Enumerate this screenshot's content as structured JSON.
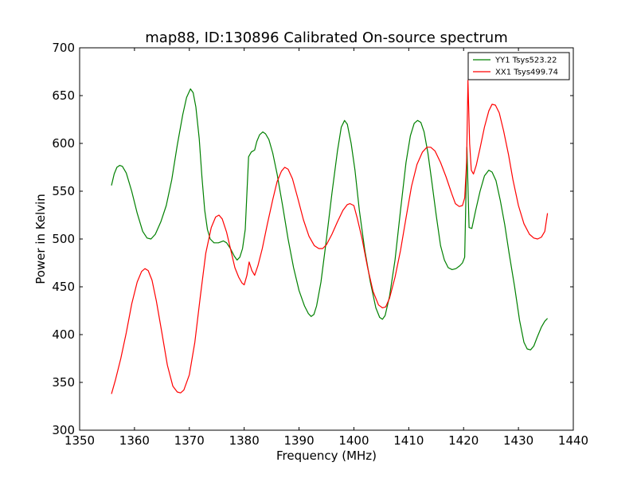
{
  "chart_data": {
    "type": "line",
    "title": "map88, ID:130896 Calibrated On-source spectrum",
    "xlabel": "Frequency (MHz)",
    "ylabel": "Power in Kelvin",
    "xlim": [
      1350,
      1440
    ],
    "ylim": [
      300,
      700
    ],
    "xticks": [
      1350,
      1360,
      1370,
      1380,
      1390,
      1400,
      1410,
      1420,
      1430,
      1440
    ],
    "yticks": [
      300,
      350,
      400,
      450,
      500,
      550,
      600,
      650,
      700
    ],
    "grid": false,
    "legend_position": "top-right",
    "series": [
      {
        "name": "YY1 Tsys523.22",
        "color": "#008000",
        "points": [
          [
            1355.8,
            556
          ],
          [
            1356.3,
            568
          ],
          [
            1356.8,
            575
          ],
          [
            1357.3,
            577
          ],
          [
            1357.8,
            576
          ],
          [
            1358.5,
            569
          ],
          [
            1359.5,
            550
          ],
          [
            1360.5,
            527
          ],
          [
            1361.5,
            508
          ],
          [
            1362.3,
            501
          ],
          [
            1363.0,
            500
          ],
          [
            1363.8,
            505
          ],
          [
            1364.8,
            518
          ],
          [
            1365.8,
            535
          ],
          [
            1366.8,
            562
          ],
          [
            1367.8,
            598
          ],
          [
            1368.8,
            630
          ],
          [
            1369.5,
            648
          ],
          [
            1370.2,
            657
          ],
          [
            1370.7,
            653
          ],
          [
            1371.2,
            638
          ],
          [
            1371.8,
            605
          ],
          [
            1372.3,
            565
          ],
          [
            1372.8,
            530
          ],
          [
            1373.3,
            510
          ],
          [
            1373.8,
            500
          ],
          [
            1374.5,
            496
          ],
          [
            1375.3,
            496
          ],
          [
            1376.2,
            498
          ],
          [
            1376.8,
            496
          ],
          [
            1377.5,
            490
          ],
          [
            1378.2,
            482
          ],
          [
            1378.7,
            478
          ],
          [
            1379.2,
            481
          ],
          [
            1379.7,
            490
          ],
          [
            1380.2,
            510
          ],
          [
            1380.8,
            586
          ],
          [
            1381.3,
            591
          ],
          [
            1381.9,
            593
          ],
          [
            1382.3,
            602
          ],
          [
            1382.8,
            609
          ],
          [
            1383.4,
            612
          ],
          [
            1383.9,
            610
          ],
          [
            1384.5,
            604
          ],
          [
            1385.2,
            590
          ],
          [
            1386.0,
            568
          ],
          [
            1387.0,
            535
          ],
          [
            1388.0,
            500
          ],
          [
            1389.0,
            470
          ],
          [
            1390.0,
            446
          ],
          [
            1391.0,
            430
          ],
          [
            1391.7,
            422
          ],
          [
            1392.2,
            419
          ],
          [
            1392.7,
            421
          ],
          [
            1393.2,
            430
          ],
          [
            1394.0,
            455
          ],
          [
            1395.0,
            500
          ],
          [
            1396.0,
            548
          ],
          [
            1397.0,
            592
          ],
          [
            1397.7,
            617
          ],
          [
            1398.3,
            624
          ],
          [
            1398.8,
            620
          ],
          [
            1399.5,
            600
          ],
          [
            1400.2,
            572
          ],
          [
            1401.0,
            530
          ],
          [
            1402.0,
            488
          ],
          [
            1403.0,
            455
          ],
          [
            1404.0,
            428
          ],
          [
            1404.7,
            418
          ],
          [
            1405.2,
            416
          ],
          [
            1405.7,
            420
          ],
          [
            1406.5,
            440
          ],
          [
            1407.5,
            478
          ],
          [
            1408.5,
            530
          ],
          [
            1409.5,
            580
          ],
          [
            1410.3,
            608
          ],
          [
            1411.0,
            621
          ],
          [
            1411.6,
            624
          ],
          [
            1412.2,
            622
          ],
          [
            1412.8,
            612
          ],
          [
            1413.5,
            590
          ],
          [
            1414.2,
            560
          ],
          [
            1415.0,
            525
          ],
          [
            1415.8,
            493
          ],
          [
            1416.5,
            478
          ],
          [
            1417.2,
            470
          ],
          [
            1417.9,
            468
          ],
          [
            1418.6,
            469
          ],
          [
            1419.3,
            472
          ],
          [
            1419.8,
            475
          ],
          [
            1420.2,
            481
          ],
          [
            1420.6,
            596
          ],
          [
            1421.0,
            512
          ],
          [
            1421.5,
            511
          ],
          [
            1422.2,
            530
          ],
          [
            1423.0,
            550
          ],
          [
            1423.8,
            566
          ],
          [
            1424.6,
            572
          ],
          [
            1425.2,
            570
          ],
          [
            1425.9,
            561
          ],
          [
            1426.7,
            540
          ],
          [
            1427.5,
            515
          ],
          [
            1428.3,
            485
          ],
          [
            1429.3,
            450
          ],
          [
            1430.2,
            415
          ],
          [
            1431.0,
            392
          ],
          [
            1431.6,
            385
          ],
          [
            1432.2,
            384
          ],
          [
            1432.8,
            388
          ],
          [
            1433.4,
            397
          ],
          [
            1434.2,
            408
          ],
          [
            1434.8,
            414
          ],
          [
            1435.3,
            417
          ]
        ]
      },
      {
        "name": "XX1 Tsys499.74",
        "color": "#ff0000",
        "points": [
          [
            1355.8,
            338
          ],
          [
            1356.5,
            352
          ],
          [
            1357.5,
            375
          ],
          [
            1358.5,
            402
          ],
          [
            1359.5,
            432
          ],
          [
            1360.5,
            455
          ],
          [
            1361.3,
            466
          ],
          [
            1361.9,
            469
          ],
          [
            1362.5,
            467
          ],
          [
            1363.2,
            457
          ],
          [
            1364.0,
            435
          ],
          [
            1365.0,
            402
          ],
          [
            1366.0,
            368
          ],
          [
            1367.0,
            346
          ],
          [
            1367.8,
            340
          ],
          [
            1368.4,
            339
          ],
          [
            1369.0,
            342
          ],
          [
            1370.0,
            358
          ],
          [
            1371.0,
            392
          ],
          [
            1372.0,
            440
          ],
          [
            1373.0,
            485
          ],
          [
            1374.0,
            512
          ],
          [
            1374.8,
            523
          ],
          [
            1375.4,
            525
          ],
          [
            1376.0,
            521
          ],
          [
            1376.8,
            507
          ],
          [
            1377.5,
            490
          ],
          [
            1378.3,
            470
          ],
          [
            1379.0,
            460
          ],
          [
            1379.6,
            454
          ],
          [
            1380.0,
            452
          ],
          [
            1380.5,
            462
          ],
          [
            1380.9,
            476
          ],
          [
            1381.4,
            467
          ],
          [
            1381.9,
            462
          ],
          [
            1382.5,
            472
          ],
          [
            1383.3,
            490
          ],
          [
            1384.2,
            515
          ],
          [
            1385.2,
            541
          ],
          [
            1386.0,
            560
          ],
          [
            1386.8,
            571
          ],
          [
            1387.4,
            575
          ],
          [
            1388.0,
            573
          ],
          [
            1388.8,
            563
          ],
          [
            1389.8,
            542
          ],
          [
            1390.8,
            520
          ],
          [
            1391.8,
            503
          ],
          [
            1392.8,
            493
          ],
          [
            1393.6,
            490
          ],
          [
            1394.3,
            490
          ],
          [
            1395.0,
            494
          ],
          [
            1396.0,
            505
          ],
          [
            1397.0,
            518
          ],
          [
            1398.0,
            530
          ],
          [
            1398.8,
            536
          ],
          [
            1399.3,
            537
          ],
          [
            1400.0,
            535
          ],
          [
            1400.6,
            522
          ],
          [
            1401.5,
            500
          ],
          [
            1402.5,
            470
          ],
          [
            1403.5,
            445
          ],
          [
            1404.5,
            431
          ],
          [
            1405.2,
            428
          ],
          [
            1405.8,
            429
          ],
          [
            1406.5,
            438
          ],
          [
            1407.5,
            460
          ],
          [
            1408.5,
            488
          ],
          [
            1409.5,
            522
          ],
          [
            1410.5,
            555
          ],
          [
            1411.5,
            578
          ],
          [
            1412.5,
            591
          ],
          [
            1413.3,
            596
          ],
          [
            1414.0,
            596
          ],
          [
            1414.8,
            592
          ],
          [
            1415.8,
            580
          ],
          [
            1416.8,
            565
          ],
          [
            1417.8,
            548
          ],
          [
            1418.5,
            537
          ],
          [
            1419.2,
            534
          ],
          [
            1419.8,
            535
          ],
          [
            1420.2,
            543
          ],
          [
            1420.55,
            580
          ],
          [
            1420.8,
            666
          ],
          [
            1421.1,
            600
          ],
          [
            1421.4,
            572
          ],
          [
            1421.8,
            568
          ],
          [
            1422.3,
            577
          ],
          [
            1423.0,
            595
          ],
          [
            1423.8,
            617
          ],
          [
            1424.6,
            634
          ],
          [
            1425.2,
            641
          ],
          [
            1425.8,
            640
          ],
          [
            1426.5,
            632
          ],
          [
            1427.3,
            613
          ],
          [
            1428.2,
            588
          ],
          [
            1429.0,
            562
          ],
          [
            1430.0,
            535
          ],
          [
            1431.0,
            516
          ],
          [
            1432.0,
            505
          ],
          [
            1432.8,
            501
          ],
          [
            1433.5,
            500
          ],
          [
            1434.2,
            502
          ],
          [
            1434.8,
            508
          ],
          [
            1435.3,
            527
          ]
        ]
      }
    ]
  }
}
